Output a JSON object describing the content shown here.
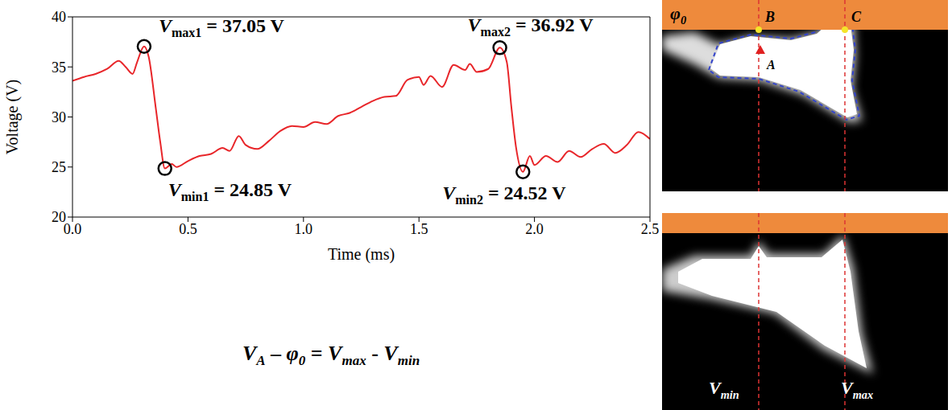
{
  "chart_data": {
    "type": "line",
    "xlabel": "Time (ms)",
    "ylabel": "Voltage (V)",
    "color": "#e8262a",
    "line_style": "solid",
    "marker": "none",
    "grid": false,
    "xlim": [
      0,
      2.5
    ],
    "ylim": [
      20,
      40
    ],
    "xticks": [
      {
        "value": 0,
        "label": "0.0"
      },
      0.5,
      {
        "value": 1,
        "label": "1.0"
      },
      1.5,
      {
        "value": 2,
        "label": "2.0"
      },
      2.5
    ],
    "yticks": [
      20,
      25,
      30,
      35,
      40
    ],
    "x": [
      0,
      0.05,
      0.1,
      0.15,
      0.2,
      0.23,
      0.26,
      0.28,
      0.31,
      0.33,
      0.36,
      0.38,
      0.4,
      0.43,
      0.45,
      0.5,
      0.55,
      0.6,
      0.65,
      0.68,
      0.72,
      0.75,
      0.8,
      0.85,
      0.9,
      0.95,
      1.0,
      1.05,
      1.1,
      1.15,
      1.2,
      1.25,
      1.3,
      1.35,
      1.4,
      1.45,
      1.5,
      1.52,
      1.55,
      1.6,
      1.65,
      1.7,
      1.72,
      1.75,
      1.8,
      1.85,
      1.88,
      1.9,
      1.92,
      1.95,
      1.98,
      2.0,
      2.05,
      2.1,
      2.15,
      2.2,
      2.25,
      2.3,
      2.35,
      2.4,
      2.45,
      2.5
    ],
    "values": [
      33.6,
      34.0,
      34.3,
      34.8,
      35.6,
      35.0,
      34.3,
      35.5,
      37.05,
      36.0,
      31.0,
      27.5,
      24.85,
      25.3,
      25.0,
      25.6,
      26.1,
      26.3,
      26.9,
      26.6,
      28.1,
      27.2,
      26.8,
      27.6,
      28.6,
      29.1,
      29.0,
      29.5,
      29.3,
      30.1,
      30.4,
      31.0,
      31.6,
      32.0,
      32.1,
      33.7,
      34.0,
      33.2,
      34.1,
      33.0,
      35.2,
      34.7,
      35.3,
      34.5,
      34.8,
      36.92,
      35.5,
      31.0,
      27.0,
      24.52,
      26.1,
      25.2,
      26.1,
      25.5,
      26.6,
      26.0,
      26.8,
      27.3,
      26.4,
      27.2,
      28.5,
      27.8
    ],
    "annotations": [
      {
        "x": 0.31,
        "y": 37.05,
        "label": {
          "base": "V",
          "sub": "max1",
          "rest": " = 37.05 V"
        }
      },
      {
        "x": 1.85,
        "y": 36.92,
        "label": {
          "base": "V",
          "sub": "max2",
          "rest": " = 36.92 V"
        }
      },
      {
        "x": 0.4,
        "y": 24.85,
        "label": {
          "base": "V",
          "sub": "min1",
          "rest": " = 24.85 V"
        }
      },
      {
        "x": 1.95,
        "y": 24.52,
        "label": {
          "base": "V",
          "sub": "min2",
          "rest": " = 24.52 V"
        }
      }
    ]
  },
  "formula": [
    {
      "t": "V",
      "sub": "A"
    },
    {
      "t": " – "
    },
    {
      "t": "φ",
      "sub": "0"
    },
    {
      "t": " = "
    },
    {
      "t": "V",
      "sub": "max"
    },
    {
      "t": " - "
    },
    {
      "t": "V",
      "sub": "min"
    }
  ],
  "image_panels": [
    {
      "labels": [
        {
          "t": "φ",
          "sub": "0"
        },
        {
          "t": "B"
        },
        {
          "t": "C"
        },
        {
          "t": "A"
        }
      ]
    },
    {
      "labels": [
        {
          "t": "V",
          "sub": "min"
        },
        {
          "t": "V",
          "sub": "max"
        }
      ]
    }
  ]
}
